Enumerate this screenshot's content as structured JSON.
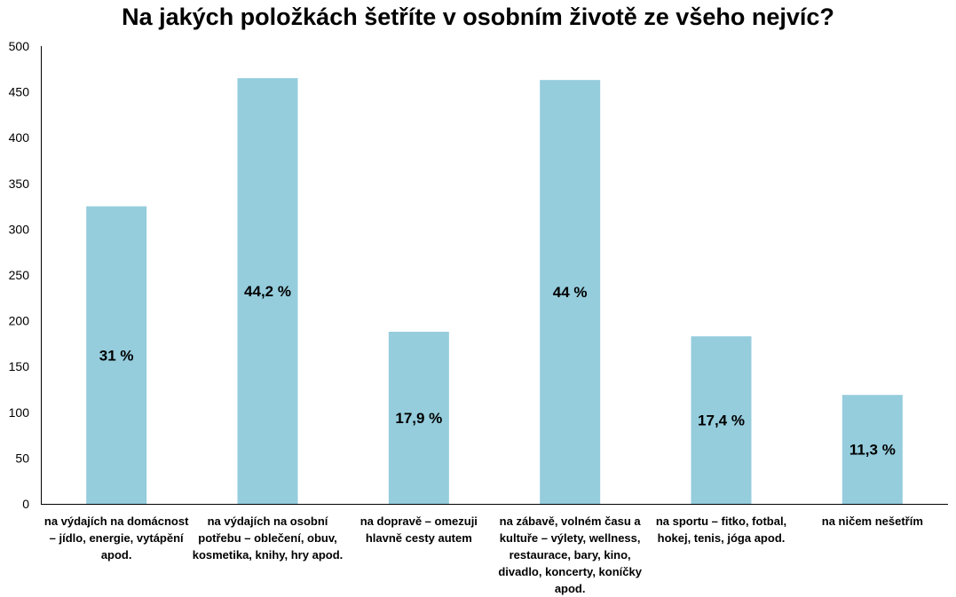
{
  "chart_data": {
    "type": "bar",
    "title": "Na jakých položkách šetříte v osobním životě ze všeho nejvíc?",
    "xlabel": "",
    "ylabel": "",
    "ylim": [
      0,
      500
    ],
    "yticks": [
      0,
      50,
      100,
      150,
      200,
      250,
      300,
      350,
      400,
      450,
      500
    ],
    "grid": false,
    "legend": "none",
    "bar_color": "#95CDDD",
    "categories": [
      "na výdajích na domácnost – jídlo, energie, vytápění apod.",
      "na výdajích na osobní potřebu – oblečení, obuv, kosmetika, knihy, hry apod.",
      "na dopravě – omezuji hlavně cesty autem",
      "na zábavě, volném času a kultuře – výlety, wellness, restaurace, bary, kino, divadlo, koncerty, koníčky apod.",
      "na sportu – fitko, fotbal, hokej, tenis, jóga apod.",
      "na ničem nešetřím"
    ],
    "values": [
      325,
      465,
      188,
      463,
      183,
      119
    ],
    "data_labels": [
      "31 %",
      "44,2 %",
      "17,9 %",
      "44 %",
      "17,4 %",
      "11,3 %"
    ]
  }
}
